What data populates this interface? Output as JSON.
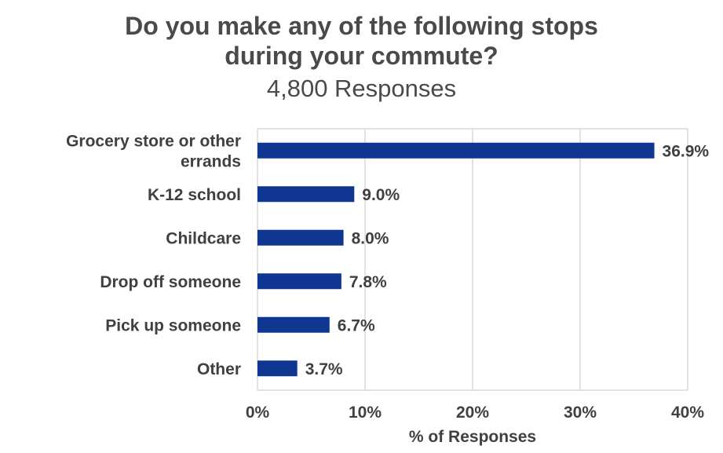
{
  "chart_data": {
    "type": "bar",
    "orientation": "horizontal",
    "title_lines": [
      "Do you make any of the following stops",
      "during your commute?"
    ],
    "subtitle": "4,800 Responses",
    "categories": [
      [
        "Grocery store or other",
        "errands"
      ],
      [
        "K-12 school"
      ],
      [
        "Childcare"
      ],
      [
        "Drop off someone"
      ],
      [
        "Pick up someone"
      ],
      [
        "Other"
      ]
    ],
    "values": [
      36.9,
      9.0,
      8.0,
      7.8,
      6.7,
      3.7
    ],
    "value_labels": [
      "36.9%",
      "9.0%",
      "8.0%",
      "7.8%",
      "6.7%",
      "3.7%"
    ],
    "xlim": [
      0,
      40
    ],
    "xticks": [
      0,
      10,
      20,
      30,
      40
    ],
    "xtick_labels": [
      "0%",
      "10%",
      "20%",
      "30%",
      "40%"
    ],
    "xlabel": "% of Responses",
    "ylabel": "",
    "grid": true,
    "bar_color": "#0f3690",
    "grid_color": "#d9d9d9",
    "text_color": "#404040"
  }
}
